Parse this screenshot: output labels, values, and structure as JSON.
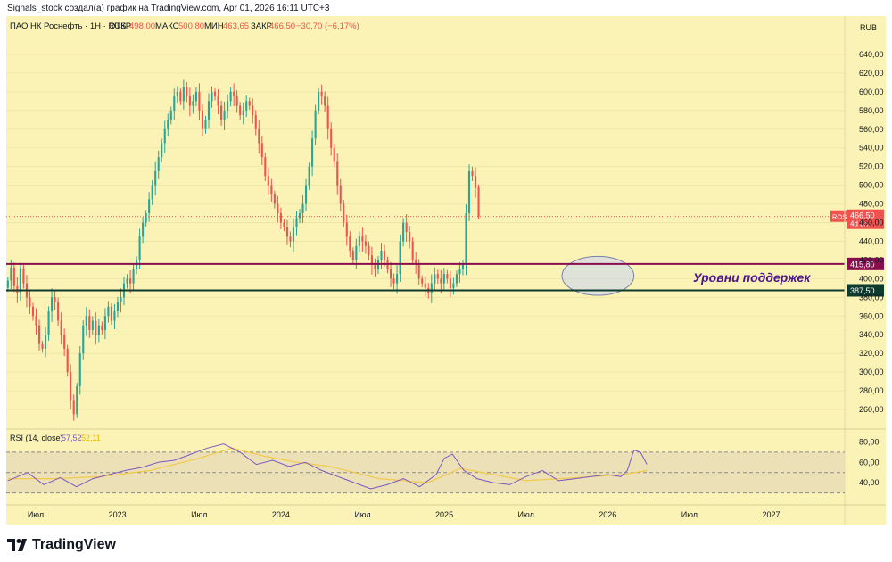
{
  "header": {
    "caption": "Signals_stock создал(а) график на TradingView.com, Apr 01, 2026 16:11 UTC+3"
  },
  "legend": {
    "symbol": "ПАО НК Роснефть · 1Н · RUS",
    "open_label": "ОТКР",
    "open_value": "498,00",
    "high_label": "МАКС",
    "high_value": "500,80",
    "low_label": "МИН",
    "low_value": "463,65",
    "close_label": "ЗАКР",
    "close_value": "466,50",
    "change": "−30,70 (−6,17%)"
  },
  "currency": "RUB",
  "tags": {
    "price_symbol": "ROSN",
    "price_value": "466,50",
    "price_sub": "4d 3h",
    "level_upper": "415,80",
    "level_lower": "387,50"
  },
  "annotation": {
    "text": "Уровни поддержек"
  },
  "rsi_legend": {
    "label": "RSI (14, close)",
    "value_rsi": "57,52",
    "value_ma": "52,11"
  },
  "footer": {
    "brand": "TradingView"
  },
  "colors": {
    "background": "#fbf3b5",
    "rsi_background": "#fbf3b5",
    "up": "#26a69a",
    "down": "#ef5350",
    "upper_level": "#880e4f",
    "lower_level": "#0d3b2e",
    "rsi_line": "#7e57c2",
    "rsi_ma": "#f2c94c",
    "annotation": "#4a148c"
  },
  "chart_data": [
    {
      "type": "candlestick",
      "title": "ПАО НК Роснефть · 1Н · RUS",
      "ylabel": "RUB",
      "ylim": [
        240,
        660
      ],
      "yticks": [
        260,
        280,
        300,
        320,
        340,
        360,
        380,
        400,
        420,
        440,
        460,
        480,
        500,
        520,
        540,
        560,
        580,
        600,
        620,
        640
      ],
      "xlim": [
        2022.32,
        2027.45
      ],
      "xticks": [
        {
          "x": 2022.5,
          "label": "Июл"
        },
        {
          "x": 2023.0,
          "label": "2023"
        },
        {
          "x": 2023.5,
          "label": "Июл"
        },
        {
          "x": 2024.0,
          "label": "2024"
        },
        {
          "x": 2024.5,
          "label": "Июл"
        },
        {
          "x": 2025.0,
          "label": "2025"
        },
        {
          "x": 2025.5,
          "label": "Июл"
        },
        {
          "x": 2026.0,
          "label": "2026"
        },
        {
          "x": 2026.5,
          "label": "Июл"
        },
        {
          "x": 2027.0,
          "label": "2027"
        }
      ],
      "candle_step": 0.0192,
      "candle_start": 2022.33,
      "closes": [
        398,
        412,
        392,
        385,
        410,
        395,
        380,
        370,
        360,
        350,
        330,
        325,
        340,
        365,
        380,
        375,
        355,
        340,
        325,
        300,
        270,
        255,
        285,
        320,
        350,
        360,
        345,
        355,
        340,
        350,
        345,
        360,
        370,
        355,
        365,
        375,
        380,
        395,
        400,
        395,
        410,
        420,
        445,
        460,
        470,
        485,
        500,
        515,
        530,
        545,
        560,
        570,
        580,
        595,
        600,
        590,
        605,
        595,
        585,
        590,
        600,
        580,
        560,
        570,
        590,
        600,
        595,
        585,
        570,
        580,
        590,
        600,
        595,
        585,
        575,
        580,
        590,
        585,
        575,
        560,
        545,
        530,
        510,
        500,
        490,
        480,
        470,
        460,
        455,
        445,
        440,
        455,
        465,
        470,
        480,
        500,
        520,
        550,
        580,
        600,
        595,
        585,
        560,
        540,
        525,
        500,
        480,
        460,
        445,
        430,
        420,
        435,
        445,
        440,
        435,
        425,
        415,
        410,
        420,
        430,
        420,
        410,
        400,
        395,
        405,
        440,
        460,
        450,
        440,
        420,
        415,
        400,
        395,
        390,
        385,
        395,
        405,
        400,
        395,
        405,
        400,
        390,
        395,
        405,
        410,
        415,
        470,
        515,
        510,
        497,
        466.5
      ],
      "last": {
        "open": 498.0,
        "high": 500.8,
        "low": 463.65,
        "close": 466.5
      },
      "levels": [
        {
          "price": 415.8,
          "label": "415,80",
          "color": "#880e4f"
        },
        {
          "price": 387.5,
          "label": "387,50",
          "color": "#0d3b2e"
        }
      ],
      "current_price": 466.5,
      "highlight_zone": {
        "x_start": 2025.72,
        "x_end": 2026.16,
        "y_low": 386,
        "y_high": 420
      }
    },
    {
      "type": "line",
      "title": "RSI (14, close)",
      "ylim": [
        20,
        90
      ],
      "yticks": [
        40,
        60,
        80
      ],
      "bands": [
        70,
        50,
        30
      ],
      "series": [
        {
          "name": "RSI",
          "x": [
            2022.33,
            2022.45,
            2022.55,
            2022.65,
            2022.75,
            2022.85,
            2022.95,
            2023.05,
            2023.15,
            2023.25,
            2023.35,
            2023.45,
            2023.55,
            2023.65,
            2023.75,
            2023.85,
            2023.95,
            2024.05,
            2024.15,
            2024.25,
            2024.35,
            2024.45,
            2024.55,
            2024.65,
            2024.75,
            2024.85,
            2024.95,
            2025.0,
            2025.05,
            2025.12,
            2025.2,
            2025.3,
            2025.4,
            2025.5,
            2025.6,
            2025.7,
            2025.8,
            2025.9,
            2026.0,
            2026.08,
            2026.12,
            2026.16,
            2026.2,
            2026.24
          ],
          "values": [
            42,
            50,
            38,
            45,
            36,
            44,
            48,
            52,
            55,
            60,
            62,
            68,
            74,
            78,
            70,
            58,
            62,
            56,
            60,
            52,
            46,
            40,
            34,
            38,
            44,
            36,
            48,
            64,
            68,
            52,
            44,
            40,
            38,
            46,
            52,
            42,
            44,
            46,
            48,
            46,
            52,
            72,
            70,
            58
          ]
        },
        {
          "name": "RSI MA",
          "x": [
            2022.33,
            2022.6,
            2022.9,
            2023.2,
            2023.5,
            2023.7,
            2023.9,
            2024.1,
            2024.3,
            2024.6,
            2024.9,
            2025.1,
            2025.3,
            2025.5,
            2025.7,
            2025.9,
            2026.1,
            2026.24
          ],
          "values": [
            44,
            44,
            46,
            52,
            64,
            74,
            66,
            60,
            56,
            44,
            40,
            54,
            48,
            42,
            44,
            46,
            48,
            52
          ]
        }
      ]
    }
  ]
}
